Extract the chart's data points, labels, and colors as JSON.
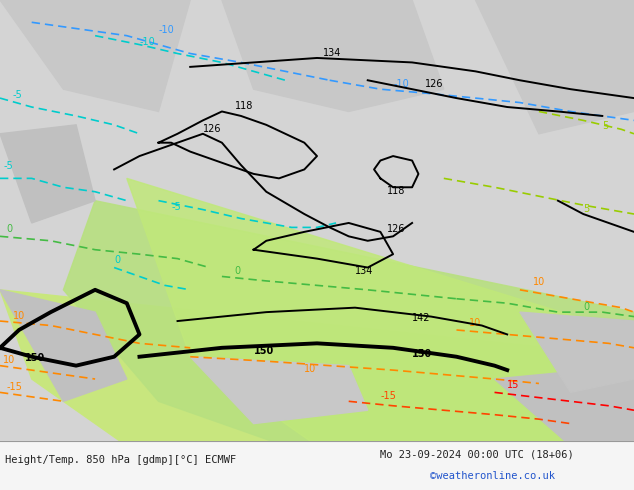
{
  "title_left": "Height/Temp. 850 hPa [gdmp][°C] ECMWF",
  "title_right": "Mo 23-09-2024 00:00 UTC (18+06)",
  "credit": "©weatheronline.co.uk",
  "bg_color_main": "#b8e68c",
  "bg_color_grey": "#d0d0d0",
  "bg_color_white": "#f0f0f0",
  "border_color": "#aaaaaa",
  "text_color_bottom": "#333333",
  "credit_color": "#2255cc",
  "fig_bg": "#ffffff",
  "bottom_bar_bg": "#f0f0f0"
}
